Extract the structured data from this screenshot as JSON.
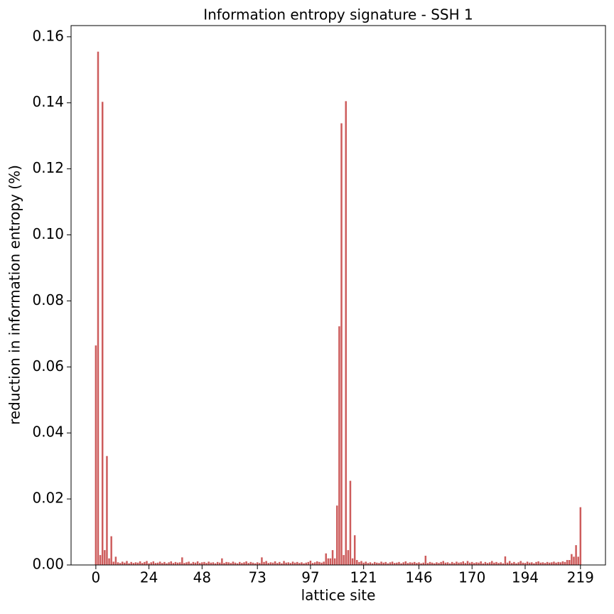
{
  "chart_data": {
    "type": "bar",
    "title": "Information entropy signature - SSH 1",
    "xlabel": "lattice site",
    "ylabel": "reduction in information entropy (%)",
    "color": "#cd5c5c",
    "x": [
      0,
      1,
      2,
      3,
      4,
      5,
      6,
      7,
      8,
      9,
      10,
      11,
      12,
      13,
      14,
      15,
      16,
      17,
      18,
      19,
      20,
      21,
      22,
      23,
      24,
      25,
      26,
      27,
      28,
      29,
      30,
      31,
      32,
      33,
      34,
      35,
      36,
      37,
      38,
      39,
      40,
      41,
      42,
      43,
      44,
      45,
      46,
      47,
      48,
      49,
      50,
      51,
      52,
      53,
      54,
      55,
      56,
      57,
      58,
      59,
      60,
      61,
      62,
      63,
      64,
      65,
      66,
      67,
      68,
      69,
      70,
      71,
      72,
      73,
      74,
      75,
      76,
      77,
      78,
      79,
      80,
      81,
      82,
      83,
      84,
      85,
      86,
      87,
      88,
      89,
      90,
      91,
      92,
      93,
      94,
      95,
      96,
      97,
      98,
      99,
      100,
      101,
      102,
      103,
      104,
      105,
      106,
      107,
      108,
      109,
      110,
      111,
      112,
      113,
      114,
      115,
      116,
      117,
      118,
      119,
      120,
      121,
      122,
      123,
      124,
      125,
      126,
      127,
      128,
      129,
      130,
      131,
      132,
      133,
      134,
      135,
      136,
      137,
      138,
      139,
      140,
      141,
      142,
      143,
      144,
      145,
      146,
      147,
      148,
      149,
      150,
      151,
      152,
      153,
      154,
      155,
      156,
      157,
      158,
      159,
      160,
      161,
      162,
      163,
      164,
      165,
      166,
      167,
      168,
      169,
      170,
      171,
      172,
      173,
      174,
      175,
      176,
      177,
      178,
      179,
      180,
      181,
      182,
      183,
      184,
      185,
      186,
      187,
      188,
      189,
      190,
      191,
      192,
      193,
      194,
      195,
      196,
      197,
      198,
      199,
      200,
      201,
      202,
      203,
      204,
      205,
      206,
      207,
      208,
      209,
      210,
      211,
      212,
      213,
      214,
      215,
      216,
      217,
      218,
      219
    ],
    "values": [
      0.0665,
      0.1555,
      0.003,
      0.1403,
      0.0045,
      0.033,
      0.002,
      0.0087,
      0.001,
      0.0025,
      0.0008,
      0.0006,
      0.001,
      0.0007,
      0.0012,
      0.0005,
      0.0009,
      0.0006,
      0.0008,
      0.0007,
      0.0011,
      0.0006,
      0.0009,
      0.0012,
      0.0005,
      0.0008,
      0.0011,
      0.0006,
      0.0007,
      0.001,
      0.0006,
      0.0009,
      0.0005,
      0.0008,
      0.0011,
      0.0006,
      0.0009,
      0.0007,
      0.0008,
      0.0023,
      0.0006,
      0.0008,
      0.001,
      0.0005,
      0.0009,
      0.0007,
      0.0011,
      0.0006,
      0.0008,
      0.0009,
      0.0006,
      0.001,
      0.0007,
      0.0008,
      0.0005,
      0.0009,
      0.0007,
      0.002,
      0.0006,
      0.0009,
      0.0008,
      0.0006,
      0.001,
      0.0007,
      0.0005,
      0.0009,
      0.0006,
      0.0008,
      0.0011,
      0.0006,
      0.0009,
      0.0007,
      0.0005,
      0.0008,
      0.0006,
      0.0023,
      0.0009,
      0.0012,
      0.0006,
      0.0008,
      0.0007,
      0.0011,
      0.0006,
      0.0009,
      0.0005,
      0.0012,
      0.0007,
      0.0008,
      0.0006,
      0.001,
      0.0007,
      0.0009,
      0.0006,
      0.0008,
      0.0005,
      0.0007,
      0.0009,
      0.0013,
      0.0006,
      0.0008,
      0.0011,
      0.0009,
      0.0007,
      0.001,
      0.0035,
      0.002,
      0.002,
      0.0045,
      0.002,
      0.018,
      0.0723,
      0.1338,
      0.003,
      0.1405,
      0.0045,
      0.0255,
      0.002,
      0.009,
      0.0015,
      0.0009,
      0.0012,
      0.0007,
      0.001,
      0.0006,
      0.0008,
      0.0005,
      0.0009,
      0.0007,
      0.0006,
      0.001,
      0.0007,
      0.0009,
      0.0005,
      0.0008,
      0.001,
      0.0006,
      0.0007,
      0.0009,
      0.0005,
      0.0008,
      0.0011,
      0.0006,
      0.0008,
      0.0007,
      0.0009,
      0.0006,
      0.0008,
      0.0005,
      0.0007,
      0.0028,
      0.0006,
      0.0009,
      0.0007,
      0.0005,
      0.0008,
      0.0006,
      0.0009,
      0.0012,
      0.0007,
      0.0008,
      0.0005,
      0.0009,
      0.0006,
      0.001,
      0.0007,
      0.0008,
      0.0011,
      0.0006,
      0.0012,
      0.0007,
      0.0009,
      0.0006,
      0.0008,
      0.0007,
      0.0011,
      0.0005,
      0.0009,
      0.0006,
      0.0008,
      0.0012,
      0.0007,
      0.0009,
      0.0006,
      0.0008,
      0.0005,
      0.0026,
      0.0007,
      0.0012,
      0.0006,
      0.0009,
      0.0005,
      0.0008,
      0.0012,
      0.0007,
      0.0006,
      0.001,
      0.0007,
      0.0008,
      0.0005,
      0.0009,
      0.0011,
      0.0007,
      0.0008,
      0.0006,
      0.0009,
      0.0007,
      0.0008,
      0.001,
      0.0007,
      0.0009,
      0.0008,
      0.0011,
      0.0009,
      0.0015,
      0.0015,
      0.0033,
      0.0025,
      0.006,
      0.0025,
      0.0175
    ],
    "xlim": [
      -11.2,
      230.3
    ],
    "xticks": [
      0,
      24,
      48,
      73,
      97,
      121,
      146,
      170,
      194,
      219
    ],
    "ylim": [
      0,
      0.1634
    ],
    "yticks": [
      {
        "value": 0,
        "label": "0.00"
      },
      0.02,
      0.04,
      0.06,
      0.08,
      {
        "value": 0.1,
        "label": "0.10"
      },
      0.12,
      0.14,
      0.16
    ]
  }
}
